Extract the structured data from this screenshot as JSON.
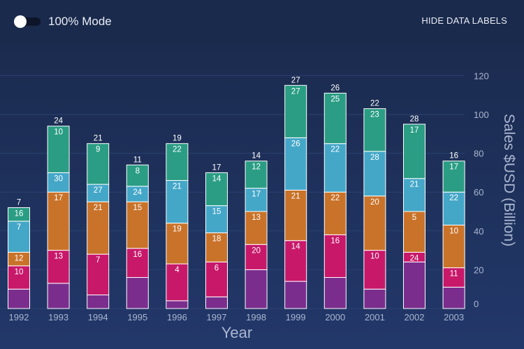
{
  "toolbar": {
    "toggle_label": "100% Mode",
    "hide_labels_button": "HIDE DATA LABELS"
  },
  "chart_data": {
    "type": "bar",
    "stacked": true,
    "categories": [
      "1992",
      "1993",
      "1994",
      "1995",
      "1996",
      "1997",
      "1998",
      "1999",
      "2000",
      "2001",
      "2002",
      "2003"
    ],
    "series": [
      {
        "color": "#7b2d8e",
        "values": [
          10,
          13,
          7,
          16,
          4,
          6,
          20,
          14,
          16,
          10,
          24,
          11
        ],
        "show_labels": false
      },
      {
        "color": "#c8186a",
        "values": [
          12,
          17,
          21,
          15,
          19,
          18,
          13,
          21,
          22,
          20,
          5,
          10
        ],
        "label_values": [
          10,
          13,
          7,
          16,
          4,
          6,
          20,
          14,
          16,
          10,
          24,
          11
        ]
      },
      {
        "color": "#c9732a",
        "values": [
          7,
          30,
          27,
          24,
          21,
          15,
          17,
          26,
          22,
          28,
          21,
          22
        ],
        "label_values": [
          12,
          17,
          21,
          15,
          19,
          18,
          13,
          21,
          22,
          20,
          5,
          10
        ]
      },
      {
        "color": "#44a7c8",
        "values": [
          16,
          10,
          9,
          8,
          22,
          14,
          12,
          27,
          25,
          23,
          17,
          17
        ],
        "label_values": [
          7,
          30,
          27,
          24,
          21,
          15,
          17,
          26,
          22,
          28,
          21,
          22
        ]
      },
      {
        "color": "#2a9d84",
        "values": [
          7,
          24,
          21,
          11,
          19,
          17,
          14,
          27,
          26,
          22,
          28,
          16
        ],
        "label_values": [
          16,
          10,
          9,
          8,
          22,
          14,
          12,
          27,
          25,
          23,
          17,
          17
        ]
      }
    ],
    "top_labels": [
      7,
      24,
      21,
      11,
      19,
      17,
      14,
      27,
      26,
      22,
      28,
      16
    ],
    "xlabel": "Year",
    "ylabel": "Sales $USD (Billion)",
    "yticks": [
      0,
      20,
      40,
      60,
      80,
      100,
      120
    ],
    "ylim": [
      0,
      120
    ],
    "y_axis_position": "right",
    "legend": "none"
  }
}
